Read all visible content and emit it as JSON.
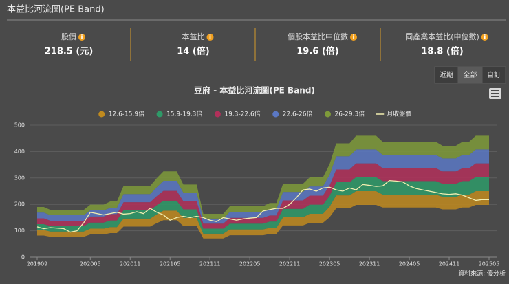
{
  "header": {
    "title": "本益比河流圖(PE Band)"
  },
  "stats": [
    {
      "label": "股價",
      "value": "218.5 (元)"
    },
    {
      "label": "本益比",
      "value": "14 (倍)"
    },
    {
      "label": "個股本益比中位數",
      "value": "19.6 (倍)"
    },
    {
      "label": "同產業本益比(中位數)",
      "value": "18.8 (倍)"
    }
  ],
  "range_buttons": [
    "近期",
    "全部",
    "自訂"
  ],
  "source": "資料來源: 優分析",
  "chart_data": {
    "type": "area",
    "title": "豆府 - 本益比河流圖(PE Band)",
    "legend": "top",
    "grid": true,
    "ylim": [
      0,
      500
    ],
    "yticks": [
      0,
      100,
      200,
      300,
      400,
      500
    ],
    "categories": [
      "201909",
      null,
      null,
      null,
      null,
      null,
      null,
      null,
      "202005",
      null,
      null,
      null,
      null,
      null,
      "202011",
      null,
      null,
      null,
      null,
      null,
      "202105",
      null,
      null,
      null,
      null,
      null,
      "202111",
      null,
      null,
      null,
      null,
      null,
      "202205",
      null,
      null,
      null,
      null,
      null,
      "202211",
      null,
      null,
      null,
      null,
      null,
      "202305",
      null,
      null,
      null,
      null,
      null,
      "202311",
      null,
      null,
      null,
      null,
      null,
      "202405",
      null,
      null,
      null,
      null,
      null,
      "202411",
      null,
      null,
      null,
      null,
      null,
      "202505"
    ],
    "series": [
      {
        "name": "12.6-15.9倍",
        "type": "arearange",
        "color": "#c08a1e",
        "low": [
          82,
          82,
          77,
          77,
          77,
          77,
          77,
          77,
          86,
          86,
          86,
          91,
          91,
          116,
          116,
          116,
          116,
          116,
          129,
          140,
          140,
          140,
          118,
          118,
          118,
          71,
          71,
          71,
          71,
          83,
          83,
          83,
          83,
          83,
          83,
          88,
          88,
          120,
          120,
          120,
          120,
          130,
          130,
          130,
          151,
          185,
          185,
          185,
          198,
          198,
          198,
          198,
          188,
          188,
          188,
          188,
          188,
          188,
          188,
          188,
          188,
          181,
          181,
          181,
          188,
          188,
          198,
          198,
          198
        ],
        "high": [
          103,
          103,
          97,
          97,
          97,
          97,
          97,
          97,
          108,
          108,
          108,
          114,
          114,
          146,
          146,
          146,
          146,
          146,
          162,
          176,
          176,
          176,
          149,
          149,
          149,
          89,
          89,
          89,
          89,
          105,
          105,
          105,
          105,
          105,
          105,
          111,
          111,
          151,
          151,
          151,
          151,
          164,
          164,
          164,
          191,
          234,
          234,
          234,
          250,
          250,
          250,
          250,
          237,
          237,
          237,
          237,
          237,
          237,
          237,
          237,
          237,
          229,
          229,
          229,
          237,
          237,
          250,
          250,
          250
        ]
      },
      {
        "name": "15.9-19.3倍",
        "type": "arearange",
        "color": "#2e9a68",
        "low": [
          103,
          103,
          97,
          97,
          97,
          97,
          97,
          97,
          108,
          108,
          108,
          114,
          114,
          146,
          146,
          146,
          146,
          146,
          162,
          176,
          176,
          176,
          149,
          149,
          149,
          89,
          89,
          89,
          89,
          105,
          105,
          105,
          105,
          105,
          105,
          111,
          111,
          151,
          151,
          151,
          151,
          164,
          164,
          164,
          191,
          234,
          234,
          234,
          250,
          250,
          250,
          250,
          237,
          237,
          237,
          237,
          237,
          237,
          237,
          237,
          237,
          229,
          229,
          229,
          237,
          237,
          250,
          250,
          250
        ],
        "high": [
          125,
          125,
          118,
          118,
          118,
          118,
          118,
          118,
          131,
          131,
          131,
          139,
          139,
          178,
          178,
          178,
          178,
          178,
          197,
          214,
          214,
          214,
          181,
          181,
          181,
          108,
          108,
          108,
          108,
          127,
          127,
          127,
          127,
          127,
          127,
          135,
          135,
          183,
          183,
          183,
          183,
          199,
          199,
          199,
          232,
          284,
          284,
          284,
          303,
          303,
          303,
          303,
          288,
          288,
          288,
          288,
          288,
          288,
          288,
          288,
          288,
          278,
          278,
          278,
          288,
          288,
          303,
          303,
          303
        ]
      },
      {
        "name": "19.3-22.6倍",
        "type": "arearange",
        "color": "#b1305a",
        "low": [
          125,
          125,
          118,
          118,
          118,
          118,
          118,
          118,
          131,
          131,
          131,
          139,
          139,
          178,
          178,
          178,
          178,
          178,
          197,
          214,
          214,
          214,
          181,
          181,
          181,
          108,
          108,
          108,
          108,
          127,
          127,
          127,
          127,
          127,
          127,
          135,
          135,
          183,
          183,
          183,
          183,
          199,
          199,
          199,
          232,
          284,
          284,
          284,
          303,
          303,
          303,
          303,
          288,
          288,
          288,
          288,
          288,
          288,
          288,
          288,
          288,
          278,
          278,
          278,
          288,
          288,
          303,
          303,
          303
        ],
        "high": [
          147,
          147,
          138,
          138,
          138,
          138,
          138,
          138,
          154,
          154,
          154,
          163,
          163,
          208,
          208,
          208,
          208,
          208,
          231,
          251,
          251,
          251,
          212,
          212,
          212,
          127,
          127,
          127,
          127,
          149,
          149,
          149,
          149,
          149,
          149,
          158,
          158,
          215,
          215,
          215,
          215,
          233,
          233,
          233,
          271,
          332,
          332,
          332,
          355,
          355,
          355,
          355,
          337,
          337,
          337,
          337,
          337,
          337,
          337,
          337,
          337,
          325,
          325,
          325,
          337,
          337,
          355,
          355,
          355
        ]
      },
      {
        "name": "22.6-26倍",
        "type": "arearange",
        "color": "#5b78c4",
        "low": [
          147,
          147,
          138,
          138,
          138,
          138,
          138,
          138,
          154,
          154,
          154,
          163,
          163,
          208,
          208,
          208,
          208,
          208,
          231,
          251,
          251,
          251,
          212,
          212,
          212,
          127,
          127,
          127,
          127,
          149,
          149,
          149,
          149,
          149,
          149,
          158,
          158,
          215,
          215,
          215,
          215,
          233,
          233,
          233,
          271,
          332,
          332,
          332,
          355,
          355,
          355,
          355,
          337,
          337,
          337,
          337,
          337,
          337,
          337,
          337,
          337,
          325,
          325,
          325,
          337,
          337,
          355,
          355,
          355
        ],
        "high": [
          169,
          169,
          159,
          159,
          159,
          159,
          159,
          159,
          177,
          177,
          177,
          187,
          187,
          239,
          239,
          239,
          239,
          239,
          265,
          289,
          289,
          289,
          244,
          244,
          244,
          146,
          146,
          146,
          146,
          172,
          172,
          172,
          172,
          172,
          172,
          182,
          182,
          247,
          247,
          247,
          247,
          268,
          268,
          268,
          312,
          382,
          382,
          382,
          408,
          408,
          408,
          408,
          387,
          387,
          387,
          387,
          387,
          387,
          387,
          387,
          387,
          374,
          374,
          374,
          387,
          387,
          408,
          408,
          408
        ]
      },
      {
        "name": "26-29.3倍",
        "type": "arearange",
        "color": "#7e9a3a",
        "low": [
          169,
          169,
          159,
          159,
          159,
          159,
          159,
          159,
          177,
          177,
          177,
          187,
          187,
          239,
          239,
          239,
          239,
          239,
          265,
          289,
          289,
          289,
          244,
          244,
          244,
          146,
          146,
          146,
          146,
          172,
          172,
          172,
          172,
          172,
          172,
          182,
          182,
          247,
          247,
          247,
          247,
          268,
          268,
          268,
          312,
          382,
          382,
          382,
          408,
          408,
          408,
          408,
          387,
          387,
          387,
          387,
          387,
          387,
          387,
          387,
          387,
          374,
          374,
          374,
          387,
          387,
          408,
          408,
          408
        ],
        "high": [
          190,
          190,
          179,
          179,
          179,
          179,
          179,
          179,
          199,
          199,
          199,
          211,
          211,
          270,
          270,
          270,
          270,
          270,
          299,
          325,
          325,
          325,
          275,
          275,
          275,
          164,
          164,
          164,
          164,
          193,
          193,
          193,
          193,
          193,
          193,
          205,
          205,
          278,
          278,
          278,
          278,
          302,
          302,
          302,
          352,
          431,
          431,
          431,
          460,
          460,
          460,
          460,
          437,
          437,
          437,
          437,
          437,
          437,
          437,
          437,
          437,
          422,
          422,
          422,
          437,
          437,
          460,
          460,
          460
        ]
      },
      {
        "name": "月收盤價",
        "type": "line",
        "color": "#f2eeb0",
        "values": [
          115,
          108,
          112,
          110,
          108,
          95,
          100,
          130,
          170,
          165,
          160,
          165,
          170,
          163,
          165,
          172,
          165,
          185,
          170,
          160,
          140,
          150,
          155,
          150,
          155,
          150,
          140,
          135,
          150,
          145,
          140,
          145,
          148,
          150,
          175,
          180,
          185,
          185,
          200,
          225,
          255,
          258,
          250,
          262,
          265,
          255,
          250,
          262,
          255,
          275,
          272,
          268,
          270,
          290,
          288,
          285,
          270,
          260,
          255,
          250,
          245,
          240,
          238,
          240,
          235,
          225,
          215,
          218,
          218
        ]
      }
    ]
  }
}
